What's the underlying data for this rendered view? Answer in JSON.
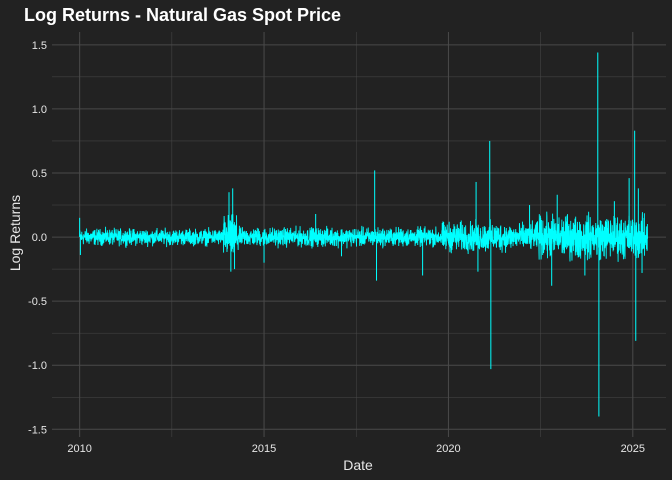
{
  "chart_data": {
    "type": "line",
    "title": "Log Returns - Natural Gas Spot Price",
    "xlabel": "Date",
    "ylabel": "Log Returns",
    "xlim": [
      2009.25,
      2025.9
    ],
    "ylim": [
      -1.56,
      1.6
    ],
    "x_ticks": [
      2010,
      2015,
      2020,
      2025
    ],
    "x_minor_ticks": [
      2012.5,
      2017.5,
      2022.5
    ],
    "y_ticks": [
      -1.5,
      -1.0,
      -0.5,
      0.0,
      0.5,
      1.0,
      1.5
    ],
    "y_tick_labels": [
      "-1.5",
      "-1.0",
      "-0.5",
      "0.0",
      "0.5",
      "1.0",
      "1.5"
    ],
    "y_minor_ticks": [
      -1.25,
      -0.75,
      -0.25,
      0.25,
      0.75,
      1.25
    ],
    "grid": true,
    "background_color": "#222222",
    "grid_color": "#4a4a4a",
    "line_color": "#00ffff",
    "x_range": [
      2010.0,
      2025.4
    ],
    "volatility_regimes": [
      {
        "start": 2010.0,
        "end": 2013.9,
        "amplitude": 0.03
      },
      {
        "start": 2013.9,
        "end": 2014.3,
        "amplitude": 0.08
      },
      {
        "start": 2014.3,
        "end": 2017.8,
        "amplitude": 0.035
      },
      {
        "start": 2017.8,
        "end": 2019.8,
        "amplitude": 0.035
      },
      {
        "start": 2019.8,
        "end": 2021.5,
        "amplitude": 0.055
      },
      {
        "start": 2021.5,
        "end": 2022.4,
        "amplitude": 0.05
      },
      {
        "start": 2022.4,
        "end": 2025.4,
        "amplitude": 0.08
      }
    ],
    "spikes": [
      {
        "x": 2010.0,
        "y": 0.15
      },
      {
        "x": 2010.02,
        "y": -0.14
      },
      {
        "x": 2014.05,
        "y": 0.35
      },
      {
        "x": 2014.1,
        "y": -0.27
      },
      {
        "x": 2014.15,
        "y": 0.38
      },
      {
        "x": 2014.2,
        "y": -0.25
      },
      {
        "x": 2015.0,
        "y": -0.2
      },
      {
        "x": 2016.4,
        "y": 0.18
      },
      {
        "x": 2017.1,
        "y": -0.15
      },
      {
        "x": 2018.0,
        "y": 0.52
      },
      {
        "x": 2018.05,
        "y": -0.34
      },
      {
        "x": 2019.3,
        "y": -0.3
      },
      {
        "x": 2020.75,
        "y": 0.43
      },
      {
        "x": 2020.8,
        "y": -0.27
      },
      {
        "x": 2021.12,
        "y": 0.75
      },
      {
        "x": 2021.15,
        "y": -1.03
      },
      {
        "x": 2022.2,
        "y": 0.25
      },
      {
        "x": 2022.8,
        "y": -0.38
      },
      {
        "x": 2022.95,
        "y": 0.33
      },
      {
        "x": 2023.7,
        "y": -0.3
      },
      {
        "x": 2024.05,
        "y": 1.44
      },
      {
        "x": 2024.08,
        "y": -1.4
      },
      {
        "x": 2024.5,
        "y": 0.28
      },
      {
        "x": 2024.9,
        "y": 0.46
      },
      {
        "x": 2025.05,
        "y": 0.83
      },
      {
        "x": 2025.08,
        "y": -0.81
      },
      {
        "x": 2025.15,
        "y": 0.38
      },
      {
        "x": 2025.25,
        "y": -0.28
      }
    ]
  }
}
